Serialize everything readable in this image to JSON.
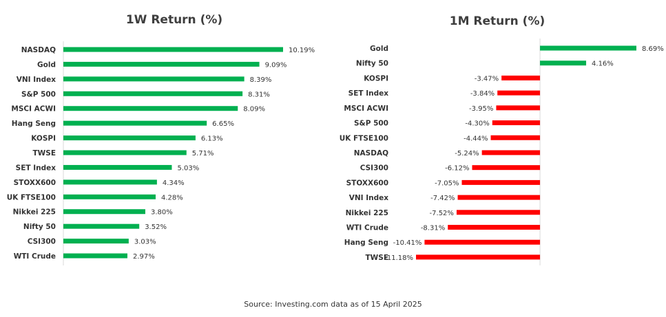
{
  "source_note": "Source: Investing.com data as of  15 April 2025",
  "colors": {
    "positive": "#00b050",
    "negative": "#ff0000",
    "axis": "#d9d9d9"
  },
  "chart_data": [
    {
      "type": "bar",
      "orientation": "horizontal",
      "title": "1W Return (%)",
      "categories": [
        "NASDAQ",
        "Gold",
        "VNI Index",
        "S&P 500",
        "MSCI ACWI",
        "Hang Seng",
        "KOSPI",
        "TWSE",
        "SET Index",
        "STOXX600",
        "UK FTSE100",
        "Nikkei 225",
        "Nifty 50",
        "CSI300",
        "WTI Crude"
      ],
      "values": [
        10.19,
        9.09,
        8.39,
        8.31,
        8.09,
        6.65,
        6.13,
        5.71,
        5.03,
        4.34,
        4.28,
        3.8,
        3.52,
        3.03,
        2.97
      ],
      "labels": [
        "10.19%",
        "9.09%",
        "8.39%",
        "8.31%",
        "8.09%",
        "6.65%",
        "6.13%",
        "5.71%",
        "5.03%",
        "4.34%",
        "4.28%",
        "3.80%",
        "3.52%",
        "3.03%",
        "2.97%"
      ],
      "xlim": [
        0,
        10.19
      ]
    },
    {
      "type": "bar",
      "orientation": "horizontal",
      "title": "1M Return (%)",
      "categories": [
        "Gold",
        "Nifty 50",
        "KOSPI",
        "SET Index",
        "MSCI ACWI",
        "S&P 500",
        "UK FTSE100",
        "NASDAQ",
        "CSI300",
        "STOXX600",
        "VNI Index",
        "Nikkei 225",
        "WTI Crude",
        "Hang Seng",
        "TWSE"
      ],
      "values": [
        8.69,
        4.16,
        -3.47,
        -3.84,
        -3.95,
        -4.3,
        -4.44,
        -5.24,
        -6.12,
        -7.05,
        -7.42,
        -7.52,
        -8.31,
        -10.41,
        -11.18
      ],
      "labels": [
        "8.69%",
        "4.16%",
        "-3.47%",
        "-3.84%",
        "-3.95%",
        "-4.30%",
        "-4.44%",
        "-5.24%",
        "-6.12%",
        "-7.05%",
        "-7.42%",
        "-7.52%",
        "-8.31%",
        "-10.41%",
        "-11.18%"
      ],
      "xlim": [
        -11.18,
        8.69
      ]
    }
  ]
}
